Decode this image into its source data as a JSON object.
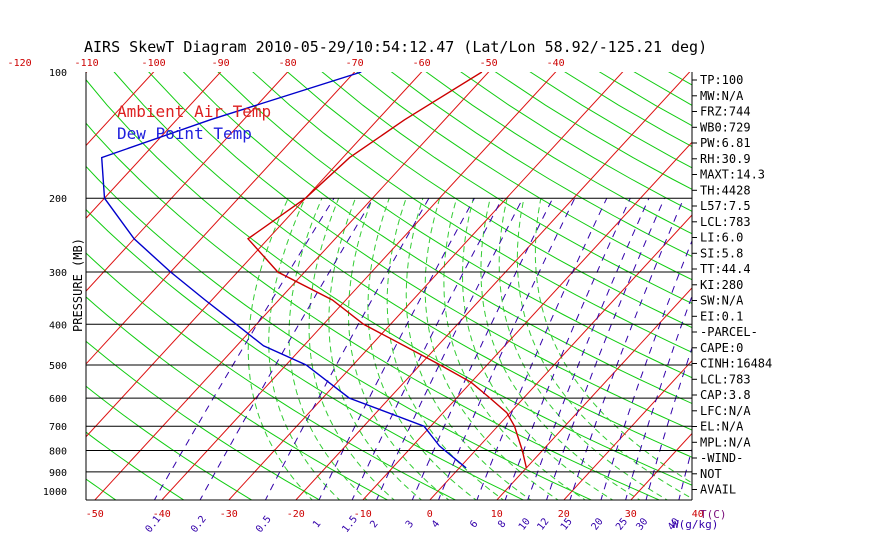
{
  "chart_data": {
    "type": "line",
    "title": "AIRS SkewT Diagram 2010-05-29/10:54:12.47 (Lat/Lon 58.92/-125.21 deg)",
    "ylabel": "PRESSURE (MB)",
    "bottom_axis_unit": "T(C)",
    "mixing_ratio_unit": "W(g/kg)",
    "pressure_ticks": [
      "100",
      "200",
      "300",
      "400",
      "500",
      "600",
      "700",
      "800",
      "900",
      "1000"
    ],
    "temp_ticks_bottom": [
      "-50",
      "-40",
      "-30",
      "-20",
      "-10",
      "0",
      "10",
      "20",
      "30",
      "40"
    ],
    "temp_ticks_top": [
      "-120",
      "-110",
      "-100",
      "-90",
      "-80",
      "-70",
      "-60",
      "-50",
      "-40"
    ],
    "mixing_ratio_ticks": [
      "0.1",
      "0.2",
      "0.5",
      "1",
      "1.5",
      "2",
      "3",
      "4",
      "6",
      "8",
      "10",
      "12",
      "15",
      "20",
      "25",
      "30",
      "40"
    ],
    "legend": [
      {
        "name": "Ambient Air Temp",
        "color": "#dd2020"
      },
      {
        "name": "Dew Point Temp",
        "color": "#2020dd"
      }
    ],
    "series": [
      {
        "name": "Ambient Air Temp",
        "color": "#cc0000",
        "points": [
          {
            "p": 100,
            "t": -51
          },
          {
            "p": 130,
            "t": -56
          },
          {
            "p": 160,
            "t": -59
          },
          {
            "p": 200,
            "t": -60
          },
          {
            "p": 250,
            "t": -63
          },
          {
            "p": 300,
            "t": -54
          },
          {
            "p": 350,
            "t": -42
          },
          {
            "p": 400,
            "t": -34
          },
          {
            "p": 450,
            "t": -25
          },
          {
            "p": 500,
            "t": -17
          },
          {
            "p": 550,
            "t": -10
          },
          {
            "p": 600,
            "t": -5
          },
          {
            "p": 650,
            "t": -0.5
          },
          {
            "p": 700,
            "t": 2.5
          },
          {
            "p": 800,
            "t": 7
          },
          {
            "p": 880,
            "t": 10
          }
        ]
      },
      {
        "name": "Dew Point Temp",
        "color": "#0000cc",
        "points": [
          {
            "p": 100,
            "t": -69
          },
          {
            "p": 130,
            "t": -85
          },
          {
            "p": 160,
            "t": -96
          },
          {
            "p": 200,
            "t": -90
          },
          {
            "p": 250,
            "t": -80
          },
          {
            "p": 300,
            "t": -70
          },
          {
            "p": 350,
            "t": -61
          },
          {
            "p": 400,
            "t": -53
          },
          {
            "p": 450,
            "t": -46
          },
          {
            "p": 500,
            "t": -37
          },
          {
            "p": 600,
            "t": -26
          },
          {
            "p": 700,
            "t": -11
          },
          {
            "p": 780,
            "t": -6
          },
          {
            "p": 880,
            "t": 1
          }
        ]
      }
    ],
    "indices": [
      "TP:100",
      "MW:N/A",
      "FRZ:744",
      "WB0:729",
      "PW:6.81",
      "RH:30.9",
      "MAXT:14.3",
      "TH:4428",
      "L57:7.5",
      "LCL:783",
      "LI:6.0",
      "SI:5.8",
      "TT:44.4",
      "KI:280",
      "SW:N/A",
      "EI:0.1",
      "-PARCEL-",
      "CAPE:0",
      "CINH:16484",
      "LCL:783",
      "CAP:3.8",
      "LFC:N/A",
      "EL:N/A",
      "MPL:N/A",
      "-WIND-",
      "NOT",
      "AVAIL"
    ],
    "colors": {
      "isotherm": "#dd1111",
      "dry_adiabat": "#11cc11",
      "moist_adiabat": "#33cc33",
      "mixing_ratio": "#3300aa",
      "text": "#000000"
    }
  }
}
